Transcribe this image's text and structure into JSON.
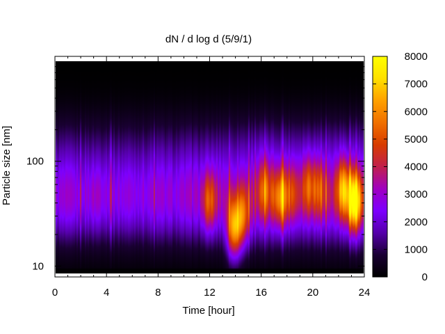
{
  "chart_data": {
    "type": "heatmap",
    "title": "dN / d log d (5/9/1)",
    "xlabel": "Time [hour]",
    "ylabel": "Particle size [nm]",
    "xlim": [
      0,
      24
    ],
    "x_ticks": [
      "0",
      "4",
      "8",
      "12",
      "16",
      "20",
      "24"
    ],
    "y_scale": "log",
    "ylim": [
      8.5,
      900
    ],
    "y_ticks": [
      "10",
      "100"
    ],
    "colorbar": {
      "range": [
        0,
        8000
      ],
      "ticks": [
        "0",
        "1000",
        "2000",
        "3000",
        "4000",
        "5000",
        "6000",
        "7000",
        "8000"
      ],
      "colormap": "gnuplot",
      "colors": [
        "#000000",
        "#1a0033",
        "#5500aa",
        "#7d00ff",
        "#a000c0",
        "#c0204c",
        "#d83c00",
        "#f07000",
        "#ffa000",
        "#ffe000",
        "#ffff00"
      ]
    },
    "grid": false,
    "legend": "none",
    "features": [
      {
        "time_hour": 3.2,
        "size_nm": 45,
        "level": 2600
      },
      {
        "time_hour": 12.0,
        "size_nm": 40,
        "level": 4600
      },
      {
        "time_hour": 13.9,
        "size_nm": 22,
        "level": 6800
      },
      {
        "time_hour": 14.6,
        "size_nm": 28,
        "level": 5000
      },
      {
        "time_hour": 16.3,
        "size_nm": 55,
        "level": 4200
      },
      {
        "time_hour": 17.5,
        "size_nm": 45,
        "level": 5200
      },
      {
        "time_hour": 18.4,
        "size_nm": 50,
        "level": 3800
      },
      {
        "time_hour": 19.7,
        "size_nm": 60,
        "level": 4300
      },
      {
        "time_hour": 20.6,
        "size_nm": 55,
        "level": 4000
      },
      {
        "time_hour": 22.4,
        "size_nm": 55,
        "level": 5600
      },
      {
        "time_hour": 23.3,
        "size_nm": 40,
        "level": 7200
      }
    ]
  }
}
